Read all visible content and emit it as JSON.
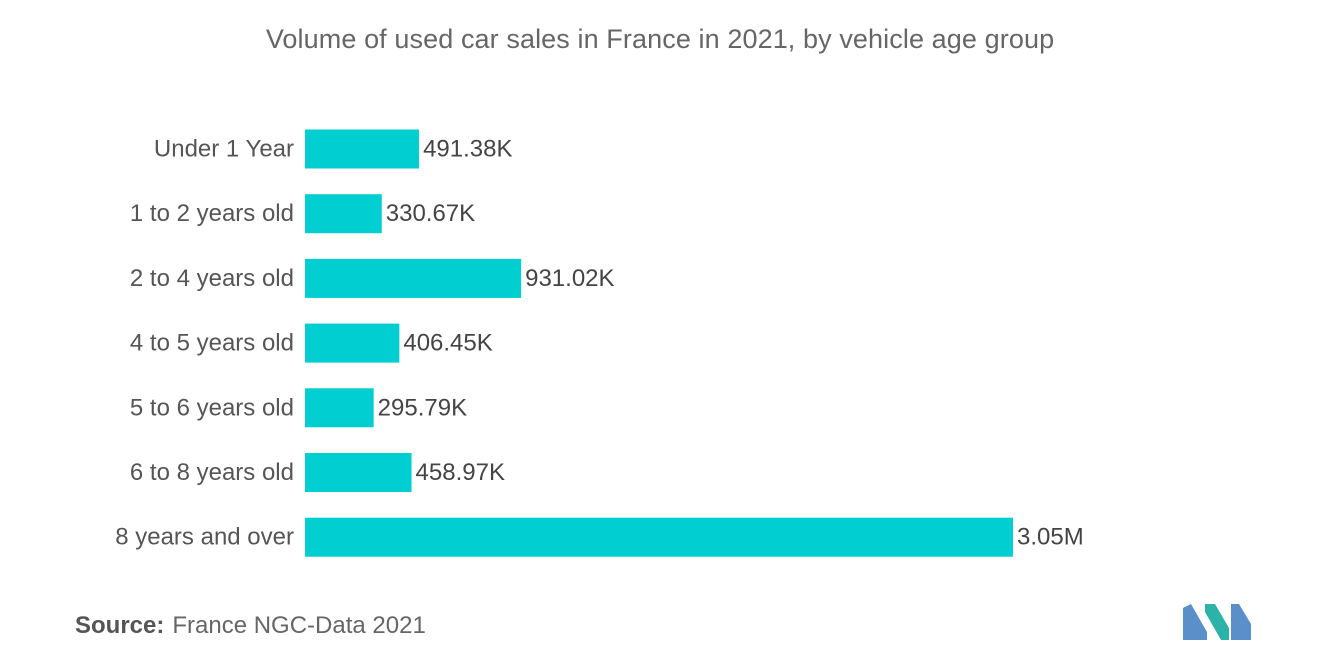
{
  "chart_data": {
    "type": "bar",
    "orientation": "horizontal",
    "title": "Volume of used car sales in France in 2021, by vehicle age group",
    "categories": [
      "Under 1 Year",
      "1 to 2 years old",
      "2 to 4 years old",
      "4 to 5 years old",
      "5 to 6 years old",
      "6 to 8 years old",
      "8 years and over"
    ],
    "values": [
      491380,
      330670,
      931020,
      406450,
      295790,
      458970,
      3050000
    ],
    "value_labels": [
      "491.38K",
      "330.67K",
      "931.02K",
      "406.45K",
      "295.79K",
      "458.97K",
      "3.05M"
    ],
    "xlim": [
      0,
      3050000
    ],
    "grid": false,
    "axes_visible": false,
    "bar_color": "#00CED1"
  },
  "footer": {
    "source_label": "Source:",
    "source_text": "France NGC-Data 2021"
  },
  "logo": {
    "icon": "mordor-intelligence-logo-icon",
    "colors": [
      "#5B8FC9",
      "#2BB3A8"
    ]
  }
}
